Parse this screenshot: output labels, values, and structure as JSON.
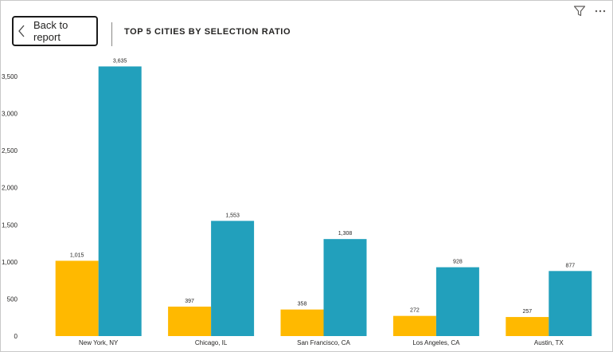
{
  "page": {
    "back_label": "Back to report"
  },
  "icons": {
    "back": "chevron-left-icon",
    "filter": "filter-icon",
    "more": "more-options-icon"
  },
  "colors": {
    "series1": "#ffb900",
    "series2": "#22a0bc",
    "axis_text": "#252423",
    "gridline": "#eaeaea"
  },
  "chart_data": {
    "type": "bar",
    "title": "TOP 5 CITIES BY SELECTION RATIO",
    "categories": [
      "New York, NY",
      "Chicago, IL",
      "San Francisco, CA",
      "Los Angeles, CA",
      "Austin, TX"
    ],
    "series": [
      {
        "values": [
          1015,
          397,
          358,
          272,
          257
        ],
        "labels": [
          "1,015",
          "397",
          "358",
          "272",
          "257"
        ]
      },
      {
        "values": [
          3635,
          1553,
          1308,
          928,
          877
        ],
        "labels": [
          "3,635",
          "1,553",
          "1,308",
          "928",
          "877"
        ]
      }
    ],
    "y_ticks": [
      0,
      500,
      1000,
      1500,
      2000,
      2500,
      3000,
      3500
    ],
    "y_tick_labels": [
      "0",
      "500",
      "1,000",
      "1,500",
      "2,000",
      "2,500",
      "3,000",
      "3,500"
    ],
    "ylim": [
      0,
      3500
    ],
    "xlabel": "",
    "ylabel": "",
    "grid": false,
    "legend": "none"
  }
}
